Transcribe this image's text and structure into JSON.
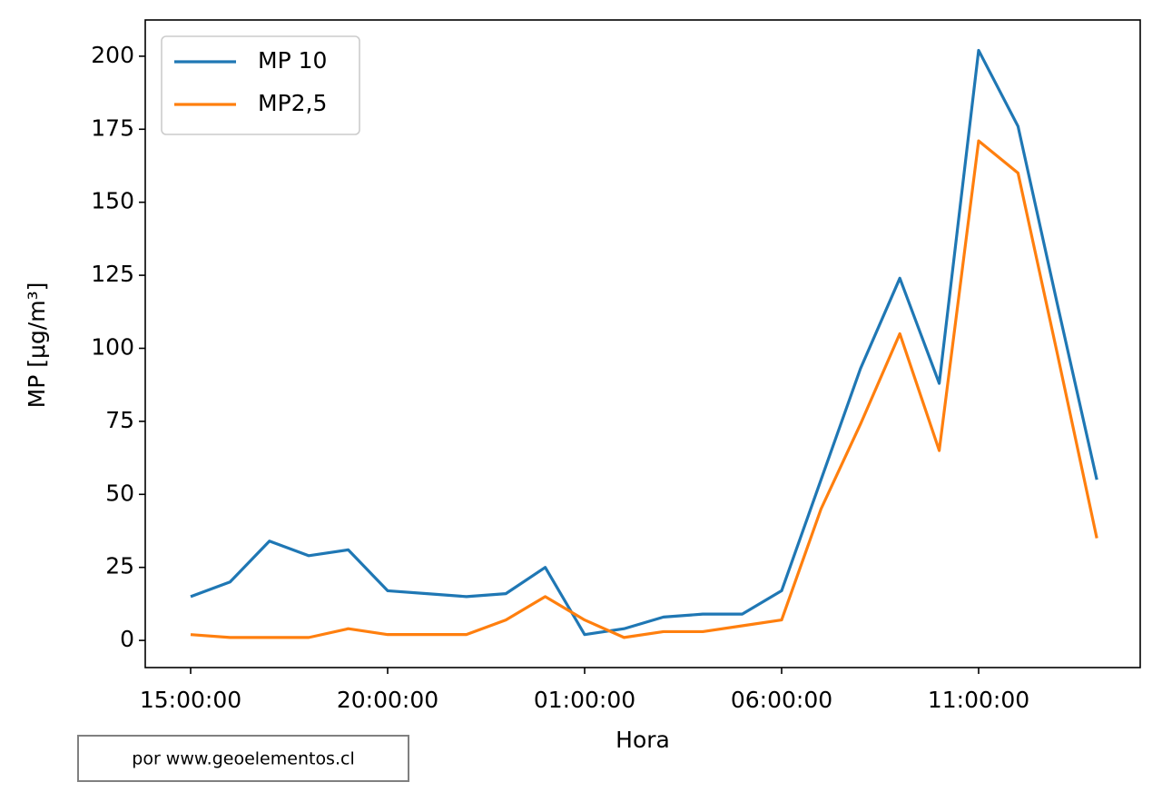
{
  "chart_data": {
    "type": "line",
    "xlabel": "Hora",
    "ylabel": "MP [μg/m³]",
    "categories": [
      "15:00:00",
      null,
      null,
      null,
      null,
      "20:00:00",
      null,
      null,
      null,
      null,
      "01:00:00",
      null,
      null,
      null,
      null,
      "06:00:00",
      null,
      null,
      null,
      null,
      "11:00:00",
      null,
      null,
      null
    ],
    "series": [
      {
        "name": "MP 10",
        "color": "#1f77b4",
        "values": [
          15,
          20,
          34,
          29,
          31,
          17,
          16,
          15,
          16,
          25,
          2,
          4,
          8,
          9,
          9,
          17,
          55,
          93,
          124,
          88,
          202,
          176,
          115,
          55
        ]
      },
      {
        "name": "MP2,5",
        "color": "#ff7f0e",
        "values": [
          2,
          1,
          1,
          1,
          4,
          2,
          2,
          2,
          7,
          15,
          7,
          1,
          3,
          3,
          5,
          7,
          45,
          74,
          105,
          65,
          171,
          160,
          98,
          35
        ]
      }
    ],
    "ylim": [
      -9.3,
      212.4
    ],
    "yticks": [
      0,
      25,
      50,
      75,
      100,
      125,
      150,
      175,
      200
    ],
    "legend": "upper left",
    "annotation": "por www.geoelementos.cl"
  }
}
